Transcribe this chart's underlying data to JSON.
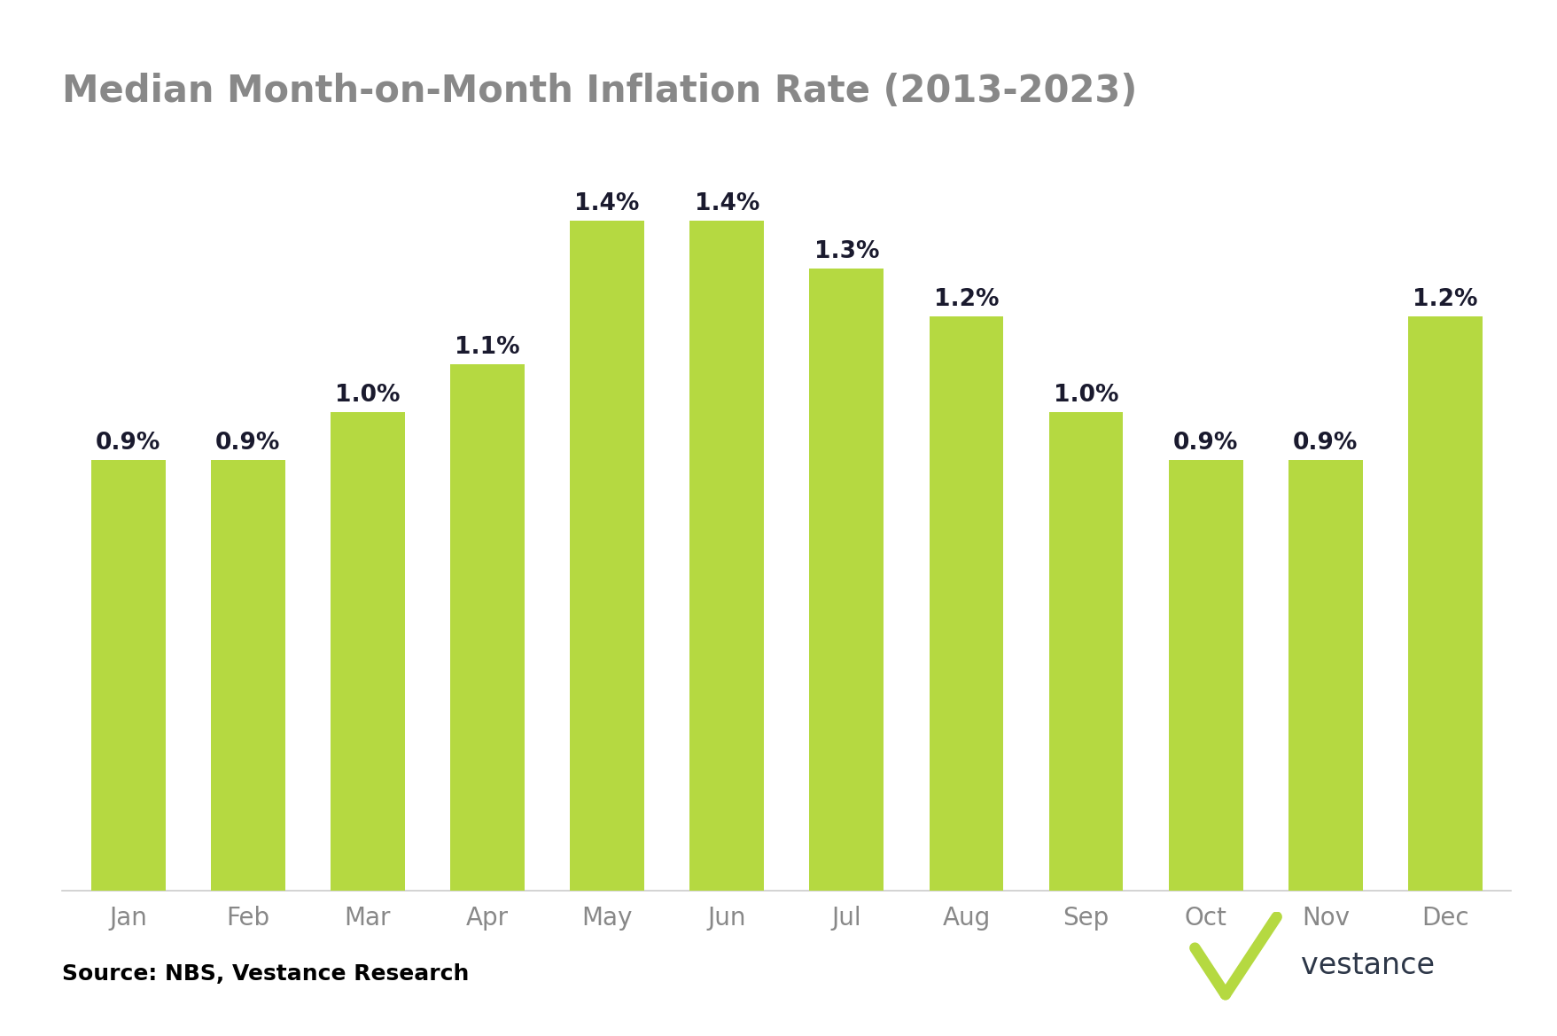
{
  "title": "Median Month-on-Month Inflation Rate (2013-2023)",
  "months": [
    "Jan",
    "Feb",
    "Mar",
    "Apr",
    "May",
    "Jun",
    "Jul",
    "Aug",
    "Sep",
    "Oct",
    "Nov",
    "Dec"
  ],
  "values": [
    0.9,
    0.9,
    1.0,
    1.1,
    1.4,
    1.4,
    1.3,
    1.2,
    1.0,
    0.9,
    0.9,
    1.2
  ],
  "bar_color": "#b5d941",
  "label_color": "#1a1a2e",
  "title_color": "#888888",
  "xlabel_color": "#888888",
  "source_text": "Source: NBS, Vestance Research",
  "source_color": "#000000",
  "background_color": "#ffffff",
  "title_fontsize": 30,
  "label_fontsize": 19,
  "xlabel_fontsize": 20,
  "source_fontsize": 18,
  "ylim": [
    0,
    1.58
  ],
  "bar_width": 0.62,
  "vestance_text": "vestance",
  "vestance_color": "#2d3748",
  "checkmark_color": "#b5d941"
}
